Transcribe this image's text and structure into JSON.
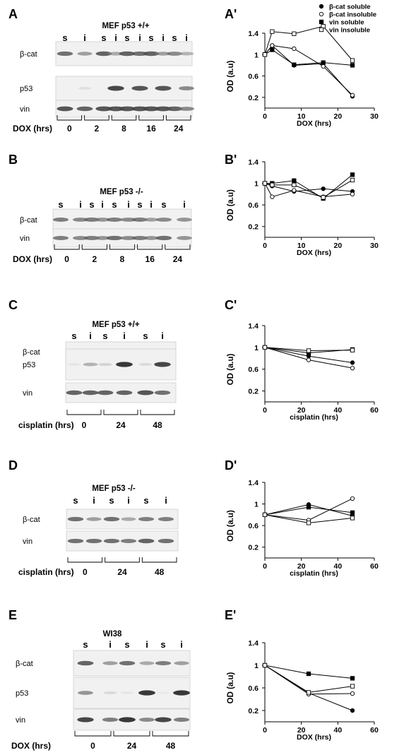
{
  "legend": [
    {
      "label": "β-cat soluble",
      "marker": "filled-circle"
    },
    {
      "label": "β-cat insoluble",
      "marker": "open-circle"
    },
    {
      "label": "vin soluble",
      "marker": "filled-square"
    },
    {
      "label": "vin insoluble",
      "marker": "open-square"
    }
  ],
  "panels": [
    {
      "letter": "A",
      "title": "MEF p53 +/+",
      "lane_labels": [
        "s",
        "i",
        "s",
        "i",
        "s",
        "i",
        "s",
        "i",
        "s",
        "i"
      ],
      "rows": [
        {
          "label": "β-cat",
          "band_intensity": [
            0.75,
            0.55,
            0.8,
            0.5,
            0.8,
            0.75,
            0.8,
            0.55,
            0.65,
            0.45
          ]
        },
        {
          "label": "p53",
          "band_intensity": [
            0,
            0.15,
            0,
            0.9,
            0,
            0.85,
            0,
            0.85,
            0,
            0.65
          ]
        },
        {
          "label": "vin",
          "band_intensity": [
            0.85,
            0.8,
            0.85,
            0.85,
            0.85,
            0.85,
            0.85,
            0.85,
            0.8,
            0.65
          ]
        }
      ],
      "treatment_label": "DOX (hrs)",
      "timepoints": [
        "0",
        "2",
        "8",
        "16",
        "24"
      ]
    },
    {
      "letter": "B",
      "title": "MEF p53 -/-",
      "lane_labels": [
        "s",
        "i",
        "s",
        "i",
        "s",
        "i",
        "s",
        "i",
        "s",
        "i"
      ],
      "rows": [
        {
          "label": "β-cat",
          "band_intensity": [
            0.7,
            0.65,
            0.7,
            0.6,
            0.7,
            0.65,
            0.7,
            0.55,
            0.65,
            0.6
          ]
        },
        {
          "label": "vin",
          "band_intensity": [
            0.7,
            0.65,
            0.7,
            0.6,
            0.75,
            0.65,
            0.7,
            0.6,
            0.75,
            0.6
          ]
        }
      ],
      "treatment_label": "DOX (hrs)",
      "timepoints": [
        "0",
        "2",
        "8",
        "16",
        "24"
      ]
    },
    {
      "letter": "C",
      "title": "MEF p53  +/+",
      "lane_labels": [
        "s",
        "i",
        "s",
        "i",
        "s",
        "i"
      ],
      "rows": [
        {
          "label": "β-cat",
          "band_intensity": [
            0.8,
            0.6,
            0.75,
            0.5,
            0.7,
            0.35
          ]
        },
        {
          "label": "p53",
          "band_intensity": [
            0.1,
            0.45,
            0.25,
            0.95,
            0.2,
            0.9
          ]
        },
        {
          "label": "vin",
          "band_intensity": [
            0.8,
            0.8,
            0.8,
            0.8,
            0.85,
            0.75
          ]
        }
      ],
      "treatment_label": "cisplatin (hrs)",
      "timepoints": [
        "0",
        "24",
        "48"
      ]
    },
    {
      "letter": "D",
      "title": "MEF p53  -/-",
      "lane_labels": [
        "s",
        "i",
        "s",
        "i",
        "s",
        "i"
      ],
      "rows": [
        {
          "label": "β-cat",
          "band_intensity": [
            0.75,
            0.55,
            0.75,
            0.5,
            0.7,
            0.7
          ]
        },
        {
          "label": "vin",
          "band_intensity": [
            0.75,
            0.75,
            0.75,
            0.7,
            0.8,
            0.75
          ]
        }
      ],
      "treatment_label": "cisplatin (hrs)",
      "timepoints": [
        "0",
        "24",
        "48"
      ]
    },
    {
      "letter": "E",
      "title": "WI38",
      "lane_labels": [
        "s",
        "i",
        "s",
        "i",
        "s",
        "i"
      ],
      "rows": [
        {
          "label": "β-cat",
          "band_intensity": [
            0.8,
            0.55,
            0.75,
            0.5,
            0.7,
            0.55
          ]
        },
        {
          "label": "p53",
          "band_intensity": [
            0.6,
            0.2,
            0.1,
            0.95,
            0.05,
            0.95
          ]
        },
        {
          "label": "vin",
          "band_intensity": [
            0.9,
            0.7,
            0.95,
            0.65,
            0.9,
            0.7
          ]
        }
      ],
      "treatment_label": "DOX (hrs)",
      "timepoints": [
        "0",
        "24",
        "48"
      ]
    }
  ],
  "chart_data": [
    {
      "panel": "A'",
      "type": "line",
      "xlabel": "DOX (hrs)",
      "ylabel": "OD (a.u)",
      "xlim": [
        0,
        30
      ],
      "ylim": [
        0,
        1.4
      ],
      "xticks": [
        0,
        10,
        20,
        30
      ],
      "yticks": [
        0.2,
        0.6,
        1,
        1.4
      ],
      "series": [
        {
          "name": "β-cat soluble",
          "marker": "filled-circle",
          "x": [
            0,
            2,
            8,
            16,
            24
          ],
          "y": [
            1,
            1.17,
            0.8,
            0.83,
            0.22
          ]
        },
        {
          "name": "β-cat insoluble",
          "marker": "open-circle",
          "x": [
            0,
            2,
            8,
            16,
            24
          ],
          "y": [
            1,
            1.17,
            1.11,
            0.78,
            0.24
          ]
        },
        {
          "name": "vin soluble",
          "marker": "filled-square",
          "x": [
            0,
            2,
            8,
            16,
            24
          ],
          "y": [
            1,
            1.09,
            0.81,
            0.85,
            0.8
          ]
        },
        {
          "name": "vin insoluble",
          "marker": "open-square",
          "x": [
            0,
            2,
            8,
            16,
            24
          ],
          "y": [
            1,
            1.43,
            1.39,
            1.53,
            0.89
          ]
        }
      ]
    },
    {
      "panel": "B'",
      "type": "line",
      "xlabel": "DOX (hrs)",
      "ylabel": "OD (a.u)",
      "xlim": [
        0,
        30
      ],
      "ylim": [
        0,
        1.4
      ],
      "xticks": [
        0,
        10,
        20,
        30
      ],
      "yticks": [
        0.2,
        0.6,
        1,
        1.4
      ],
      "series": [
        {
          "name": "β-cat soluble",
          "marker": "filled-circle",
          "x": [
            0,
            2,
            8,
            16,
            24
          ],
          "y": [
            1,
            0.95,
            0.85,
            0.9,
            0.85
          ]
        },
        {
          "name": "β-cat insoluble",
          "marker": "open-circle",
          "x": [
            0,
            2,
            8,
            16,
            24
          ],
          "y": [
            1,
            0.75,
            0.87,
            0.75,
            0.8
          ]
        },
        {
          "name": "vin soluble",
          "marker": "filled-square",
          "x": [
            0,
            2,
            8,
            16,
            24
          ],
          "y": [
            1,
            1,
            1.05,
            0.72,
            1.16
          ]
        },
        {
          "name": "vin insoluble",
          "marker": "open-square",
          "x": [
            0,
            2,
            8,
            16,
            24
          ],
          "y": [
            1,
            0.97,
            0.97,
            0.74,
            1.06
          ]
        }
      ]
    },
    {
      "panel": "C'",
      "type": "line",
      "xlabel": "cisplatin (hrs)",
      "ylabel": "OD (a.u)",
      "xlim": [
        0,
        60
      ],
      "ylim": [
        0,
        1.4
      ],
      "xticks": [
        0,
        20,
        40,
        60
      ],
      "yticks": [
        0.2,
        0.6,
        1,
        1.4
      ],
      "series": [
        {
          "name": "β-cat soluble",
          "marker": "filled-circle",
          "x": [
            0,
            24,
            48
          ],
          "y": [
            1,
            0.84,
            0.72
          ]
        },
        {
          "name": "β-cat insoluble",
          "marker": "open-circle",
          "x": [
            0,
            24,
            48
          ],
          "y": [
            1,
            0.77,
            0.62
          ]
        },
        {
          "name": "vin soluble",
          "marker": "filled-square",
          "x": [
            0,
            24,
            48
          ],
          "y": [
            1,
            0.9,
            0.96
          ]
        },
        {
          "name": "vin insoluble",
          "marker": "open-square",
          "x": [
            0,
            24,
            48
          ],
          "y": [
            1,
            0.94,
            0.95
          ]
        }
      ]
    },
    {
      "panel": "D'",
      "type": "line",
      "xlabel": "cisplatin (hrs)",
      "ylabel": "OD (a.u)",
      "xlim": [
        0,
        60
      ],
      "ylim": [
        0,
        1.4
      ],
      "xticks": [
        0,
        20,
        40,
        60
      ],
      "yticks": [
        0.2,
        0.6,
        1,
        1.4
      ],
      "series": [
        {
          "name": "β-cat soluble",
          "marker": "filled-circle",
          "x": [
            0,
            24,
            48
          ],
          "y": [
            0.8,
            0.99,
            0.78
          ]
        },
        {
          "name": "β-cat insoluble",
          "marker": "open-circle",
          "x": [
            0,
            24,
            48
          ],
          "y": [
            0.8,
            0.7,
            1.1
          ]
        },
        {
          "name": "vin soluble",
          "marker": "filled-square",
          "x": [
            0,
            24,
            48
          ],
          "y": [
            0.8,
            0.94,
            0.84
          ]
        },
        {
          "name": "vin insoluble",
          "marker": "open-square",
          "x": [
            0,
            24,
            48
          ],
          "y": [
            0.8,
            0.65,
            0.74
          ]
        }
      ]
    },
    {
      "panel": "E'",
      "type": "line",
      "xlabel": "DOX (hrs)",
      "ylabel": "OD (a.u)",
      "xlim": [
        0,
        60
      ],
      "ylim": [
        0,
        1.4
      ],
      "xticks": [
        0,
        20,
        40,
        60
      ],
      "yticks": [
        0.2,
        0.6,
        1,
        1.4
      ],
      "series": [
        {
          "name": "β-cat soluble",
          "marker": "filled-circle",
          "x": [
            0,
            24,
            48
          ],
          "y": [
            1,
            0.51,
            0.2
          ]
        },
        {
          "name": "β-cat insoluble",
          "marker": "open-circle",
          "x": [
            0,
            24,
            48
          ],
          "y": [
            1,
            0.49,
            0.5
          ]
        },
        {
          "name": "vin soluble",
          "marker": "filled-square",
          "x": [
            0,
            24,
            48
          ],
          "y": [
            1,
            0.85,
            0.77
          ]
        },
        {
          "name": "vin insoluble",
          "marker": "open-square",
          "x": [
            0,
            24,
            48
          ],
          "y": [
            1,
            0.52,
            0.63
          ]
        }
      ]
    }
  ]
}
